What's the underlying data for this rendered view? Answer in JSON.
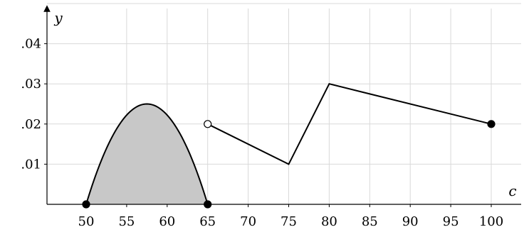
{
  "chart_data": {
    "type": "line",
    "title": "",
    "xlabel": "c",
    "ylabel": "y",
    "xlim": [
      45,
      105
    ],
    "ylim": [
      0,
      0.05
    ],
    "grid": true,
    "x_ticks": [
      50,
      55,
      60,
      65,
      70,
      75,
      80,
      85,
      90,
      95,
      100
    ],
    "x_tick_labels": [
      "50",
      "55",
      "60",
      "65",
      "70",
      "75",
      "80",
      "85",
      "90",
      "95",
      "100"
    ],
    "y_ticks": [
      0.01,
      0.02,
      0.03,
      0.04
    ],
    "y_tick_labels": [
      ".01",
      ".02",
      ".03",
      ".04"
    ],
    "colors": {
      "grid": "#d9d9d9",
      "line": "#000000",
      "shade": "#c8c8c8"
    },
    "series": [
      {
        "kind": "filled-curve",
        "description": "parabolic density curve from c=50 to c=65, shaded underneath",
        "points": [
          {
            "x": 50,
            "y": 0
          },
          {
            "x": 57.5,
            "y": 0.025
          },
          {
            "x": 65,
            "y": 0
          }
        ]
      },
      {
        "kind": "polyline",
        "points": [
          {
            "x": 65,
            "y": 0.02
          },
          {
            "x": 75,
            "y": 0.01
          },
          {
            "x": 80,
            "y": 0.03
          },
          {
            "x": 100,
            "y": 0.02
          }
        ]
      }
    ],
    "markers": [
      {
        "x": 50,
        "y": 0,
        "style": "filled"
      },
      {
        "x": 65,
        "y": 0,
        "style": "filled"
      },
      {
        "x": 65,
        "y": 0.02,
        "style": "open"
      },
      {
        "x": 100,
        "y": 0.02,
        "style": "filled"
      }
    ]
  }
}
